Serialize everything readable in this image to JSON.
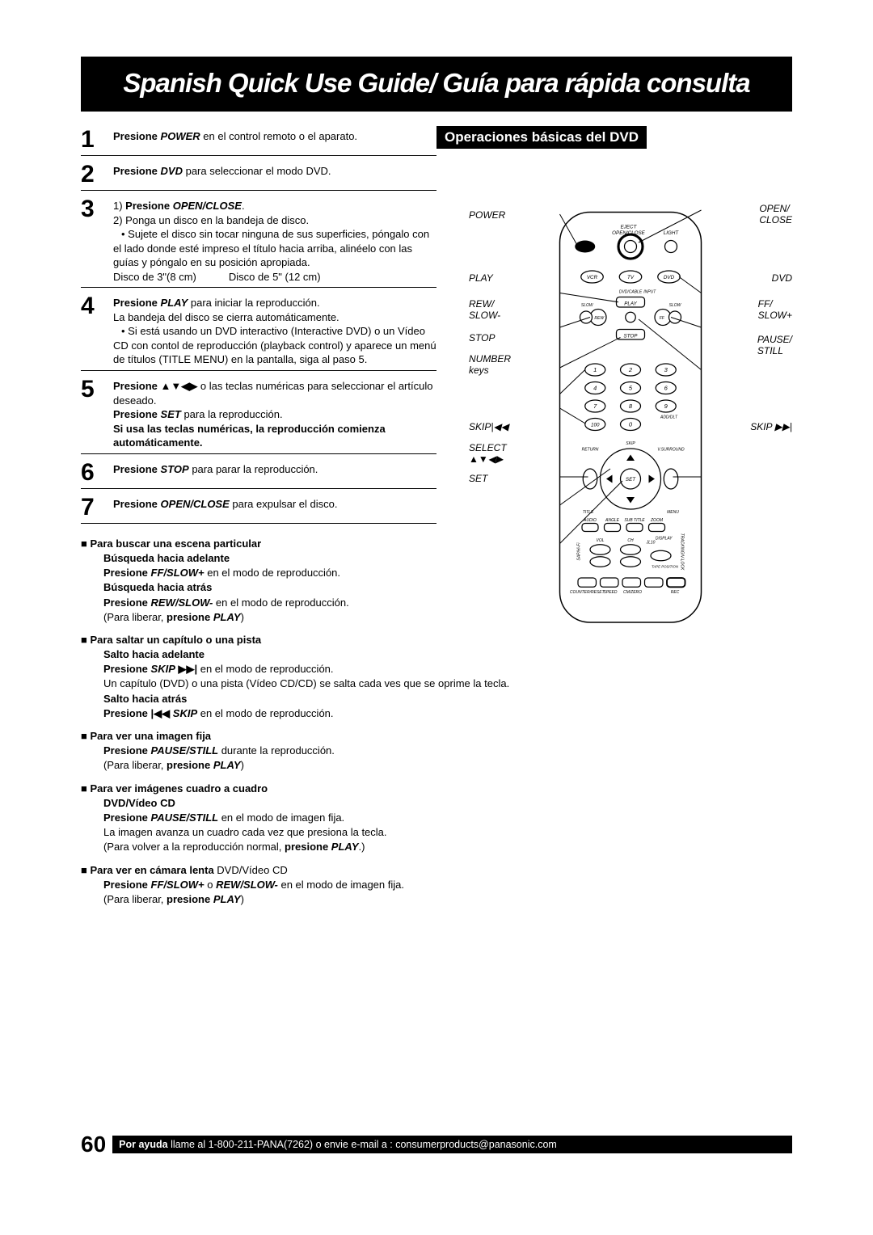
{
  "title": "Spanish Quick Use Guide/ Guía para rápida consulta",
  "sectionHeader": "Operaciones básicas del DVD",
  "steps": [
    {
      "num": "1",
      "lines": [
        "<b>Presione <i>POWER</i></b> en el control remoto o el aparato."
      ]
    },
    {
      "num": "2",
      "lines": [
        "<b>Presione <i>DVD</i></b> para seleccionar el modo DVD."
      ]
    },
    {
      "num": "3",
      "lines": [
        "1) <b>Presione <i>OPEN/CLOSE</i></b>.",
        "2) Ponga un disco en la bandeja de disco.",
        "<span class='bullet'>• Sujete el disco sin tocar ninguna de sus superficies, póngalo con el lado donde esté impreso el título hacia arriba, alinéelo con las guías y póngalo en su posición apropiada.</span>",
        "<div class='disc-row'><span>Disco de 3\"(8 cm)</span><span>Disco de 5\" (12 cm)</span></div>"
      ]
    },
    {
      "num": "4",
      "lines": [
        "<b>Presione <i>PLAY</i></b> para iniciar la reproducción.",
        "La bandeja del disco se cierra automáticamente.",
        "<span class='bullet'>• Si está usando un DVD interactivo (Interactive DVD) o un Vídeo CD con contol de reproducción (playback control) y aparece un menú de títulos (TITLE MENU) en la pantalla, siga al paso 5.</span>"
      ]
    },
    {
      "num": "5",
      "lines": [
        "<b>Presione ▲▼◀▶</b> o las teclas numéricas para seleccionar el artículo deseado.",
        "<b>Presione <i>SET</i></b> para la reproducción.",
        "<b>Si usa las teclas numéricas, la reproducción comienza automáticamente.</b>"
      ]
    },
    {
      "num": "6",
      "lines": [
        "<b>Presione <i>STOP</i></b> para parar la reproducción."
      ]
    },
    {
      "num": "7",
      "lines": [
        "<b>Presione <i>OPEN/CLOSE</i></b> para expulsar el disco."
      ]
    }
  ],
  "tips": [
    {
      "head": "Para buscar una escena particular",
      "blocks": [
        {
          "bold": "Búsqueda hacia adelante",
          "text": "<b>Presione <i>FF/SLOW+</i></b> en el modo de reproducción."
        },
        {
          "bold": "Búsqueda hacia atrás",
          "text": "<b>Presione <i>REW/SLOW-</i></b> en el modo de reproducción.<br>(Para liberar, <b>presione <i>PLAY</i></b>)"
        }
      ]
    },
    {
      "head": "Para saltar un capítulo o una pista",
      "blocks": [
        {
          "bold": "Salto hacia adelante",
          "text": "<b>Presione <i>SKIP</i> ▶▶|</b> en el modo de reproducción.<br>Un capítulo (DVD) o una pista (Vídeo CD/CD) se salta cada ves que se oprime la tecla."
        },
        {
          "bold": "Salto hacia atrás",
          "text": "<b>Presione |◀◀ <i>SKIP</i></b> en el modo de reproducción."
        }
      ]
    },
    {
      "head": "Para ver una imagen fija",
      "blocks": [
        {
          "bold": "",
          "text": "<b>Presione <i>PAUSE/STILL</i></b> durante la reproducción.<br>(Para liberar, <b>presione <i>PLAY</i></b>)"
        }
      ]
    },
    {
      "head": "Para ver imágenes cuadro a cuadro",
      "blocks": [
        {
          "bold": "DVD/Vídeo CD",
          "text": "<b>Presione <i>PAUSE/STILL</i></b> en el modo de imagen fija.<br>La imagen avanza un cuadro cada vez que presiona la tecla.<br>(Para volver a la reproducción normal, <b>presione <i>PLAY</i></b>.)"
        }
      ]
    },
    {
      "head": "Para ver en cámara lenta <span style='font-weight:normal'>DVD/Vídeo CD</span>",
      "blocks": [
        {
          "bold": "",
          "text": "<b>Presione <i>FF/SLOW+</i></b> o <b><i>REW/SLOW-</i></b> en el modo de imagen fija.<br>(Para liberar, <b>presione <i>PLAY</i></b>)"
        }
      ]
    }
  ],
  "remoteLabels": {
    "power": "POWER",
    "openClose": "OPEN/\nCLOSE",
    "play": "PLAY",
    "dvd": "DVD",
    "rewSlow": "REW/\nSLOW-",
    "ffSlow": "FF/\nSLOW+",
    "stop": "STOP",
    "pauseStill": "PAUSE/\nSTILL",
    "numberKeys": "NUMBER\nkeys",
    "skipBack": "SKIP|◀◀",
    "skipFwd": "SKIP ▶▶|",
    "select": "SELECT\n▲▼◀▶",
    "set": "SET"
  },
  "pageNumber": "60",
  "footerText": "Por ayuda llame al 1-800-211-PANA(7262) o envie e-mail a : consumerproducts@panasonic.com",
  "footerBold": "Por ayuda"
}
